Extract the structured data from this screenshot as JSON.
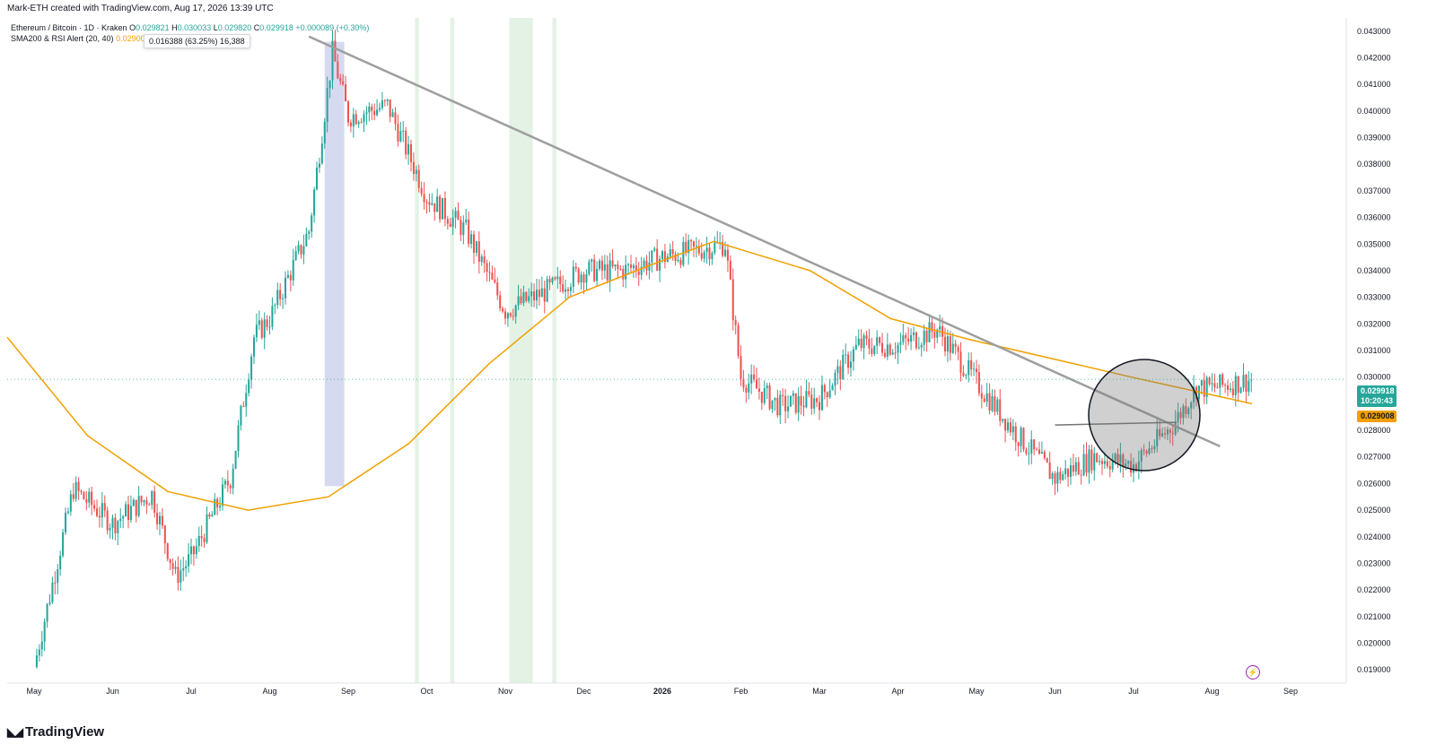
{
  "header": {
    "attribution": "Mark-ETH created with TradingView.com, Aug 17, 2026 13:39 UTC",
    "symbol": "Ethereum / Bitcoin · 1D · Kraken",
    "o_label": "O",
    "o_value": "0.029821",
    "h_label": "H",
    "h_value": "0.030033",
    "l_label": "L",
    "l_value": "0.029820",
    "c_label": "C",
    "c_value": "0.029918",
    "change": "+0.000089 (+0.30%)",
    "indicator_name": "SMA200 & RSI Alert (20, 40)",
    "indicator_value": "0.029008",
    "tooltip": "0.016388 (63.25%) 16,388"
  },
  "price_tag": {
    "price": "0.029918",
    "countdown": "10:20:43",
    "color": "#26a69a"
  },
  "sma_tag": {
    "value": "0.029008",
    "color": "#f0a000"
  },
  "brand": {
    "name": "TradingView",
    "icon": "tradingview-logo-icon"
  },
  "icons": {
    "alert": "lightning-alert-icon"
  },
  "colors": {
    "up": "#26a69a",
    "down": "#ef5350",
    "sma": "#f0a000",
    "trendline": "#9e9e9e",
    "highlight": "#c8e6c9",
    "range": "#c5cae9"
  },
  "chart_data": {
    "type": "candlestick",
    "title": "",
    "xlabel": "",
    "ylabel": "",
    "ylim": [
      0.0185,
      0.0435
    ],
    "y_ticks": [
      "0.043000",
      "0.042000",
      "0.041000",
      "0.040000",
      "0.039000",
      "0.038000",
      "0.037000",
      "0.036000",
      "0.035000",
      "0.034000",
      "0.033000",
      "0.032000",
      "0.031000",
      "0.030000",
      "0.029000",
      "0.028000",
      "0.027000",
      "0.026000",
      "0.025000",
      "0.024000",
      "0.023000",
      "0.022000",
      "0.021000",
      "0.020000",
      "0.019000"
    ],
    "x_ticks": [
      "May",
      "Jun",
      "Jul",
      "Aug",
      "Sep",
      "Oct",
      "Nov",
      "Dec",
      "2026",
      "Feb",
      "Mar",
      "Apr",
      "May",
      "Jun",
      "Jul",
      "Aug",
      "Sep"
    ],
    "price_path": [
      {
        "x": "May",
        "y": 0.0191
      },
      {
        "x": "mid May",
        "y": 0.0258
      },
      {
        "x": "Jun",
        "y": 0.0245
      },
      {
        "x": "mid Jun",
        "y": 0.0256
      },
      {
        "x": "late Jun",
        "y": 0.0225
      },
      {
        "x": "Jul",
        "y": 0.0232
      },
      {
        "x": "mid Jul",
        "y": 0.0262
      },
      {
        "x": "late Jul",
        "y": 0.0315
      },
      {
        "x": "Aug",
        "y": 0.0322
      },
      {
        "x": "mid Aug",
        "y": 0.0355
      },
      {
        "x": "late Aug",
        "y": 0.0422
      },
      {
        "x": "Sep",
        "y": 0.0398
      },
      {
        "x": "mid Sep",
        "y": 0.0402
      },
      {
        "x": "Oct",
        "y": 0.0368
      },
      {
        "x": "mid Oct",
        "y": 0.0355
      },
      {
        "x": "Nov",
        "y": 0.0325
      },
      {
        "x": "mid Nov",
        "y": 0.0332
      },
      {
        "x": "Dec",
        "y": 0.034
      },
      {
        "x": "mid Dec",
        "y": 0.034
      },
      {
        "x": "2026",
        "y": 0.0345
      },
      {
        "x": "late Jan",
        "y": 0.035
      },
      {
        "x": "Feb",
        "y": 0.03
      },
      {
        "x": "mid Feb",
        "y": 0.0289
      },
      {
        "x": "Mar",
        "y": 0.0292
      },
      {
        "x": "mid Mar",
        "y": 0.0312
      },
      {
        "x": "Apr",
        "y": 0.0312
      },
      {
        "x": "mid Apr",
        "y": 0.0318
      },
      {
        "x": "May",
        "y": 0.0298
      },
      {
        "x": "mid May",
        "y": 0.0279
      },
      {
        "x": "Jun",
        "y": 0.0262
      },
      {
        "x": "mid Jun",
        "y": 0.027
      },
      {
        "x": "Jul",
        "y": 0.0267
      },
      {
        "x": "mid Jul",
        "y": 0.0282
      },
      {
        "x": "late Jul",
        "y": 0.0296
      },
      {
        "x": "Aug",
        "y": 0.0296
      },
      {
        "x": "mid Aug",
        "y": 0.0299
      }
    ],
    "sma200_path": [
      {
        "x": "May",
        "y": 0.0315
      },
      {
        "x": "Jun",
        "y": 0.0278
      },
      {
        "x": "Jul",
        "y": 0.0257
      },
      {
        "x": "Aug",
        "y": 0.025
      },
      {
        "x": "Sep",
        "y": 0.0255
      },
      {
        "x": "Oct",
        "y": 0.0275
      },
      {
        "x": "Nov",
        "y": 0.0305
      },
      {
        "x": "Dec",
        "y": 0.033
      },
      {
        "x": "2026",
        "y": 0.0342
      },
      {
        "x": "late Jan",
        "y": 0.0351
      },
      {
        "x": "Mar",
        "y": 0.034
      },
      {
        "x": "Apr",
        "y": 0.0322
      },
      {
        "x": "May",
        "y": 0.0314
      },
      {
        "x": "Jul",
        "y": 0.03
      },
      {
        "x": "mid Aug",
        "y": 0.029
      }
    ],
    "last_close": 0.029918,
    "sma200_last": 0.029008,
    "grid": false,
    "legend": "top-left"
  }
}
